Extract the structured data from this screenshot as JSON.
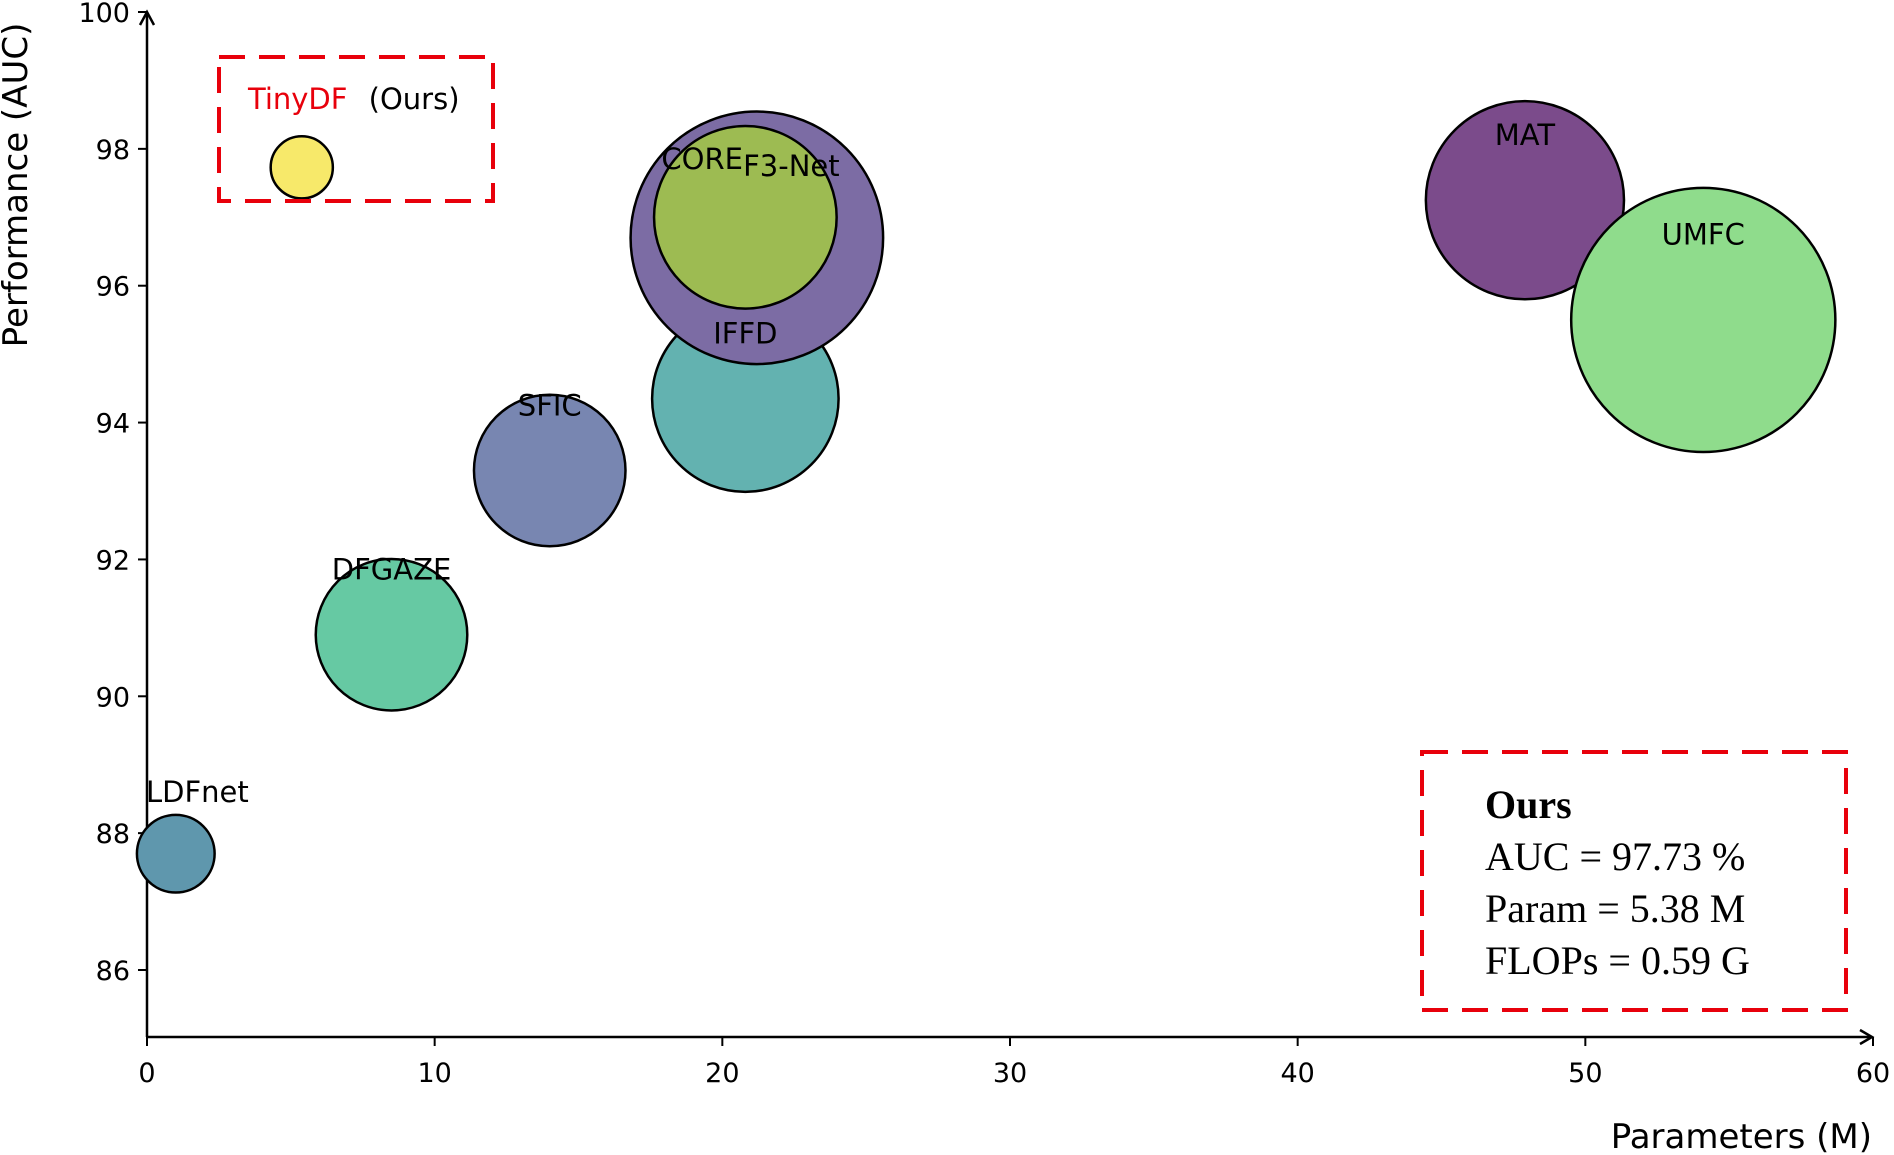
{
  "chart_data": {
    "type": "scatter",
    "xlabel": "Parameters (M)",
    "ylabel": "Performance (AUC)",
    "xlim": [
      0,
      60
    ],
    "ylim": [
      85,
      100
    ],
    "x_ticks": [
      0,
      10,
      20,
      30,
      40,
      50,
      60
    ],
    "y_ticks": [
      86,
      88,
      90,
      92,
      94,
      96,
      98,
      100
    ],
    "grid": false,
    "points": [
      {
        "label": "LDFnet",
        "x": 1.0,
        "y": 87.7,
        "size": 1.0,
        "color": "#5f97ad",
        "label_dx": 0.75,
        "label_dy": 0.9
      },
      {
        "label": "DFGAZE",
        "x": 8.5,
        "y": 90.9,
        "size": 1.95,
        "color": "#66c9a3",
        "label_dx": 0.0,
        "label_dy": 0.95
      },
      {
        "label": "SFIC",
        "x": 14.0,
        "y": 93.3,
        "size": 1.95,
        "color": "#7886b1",
        "label_dx": 0.0,
        "label_dy": 0.95
      },
      {
        "label": "IFFD",
        "x": 20.8,
        "y": 94.35,
        "size": 2.4,
        "color": "#63b2b0",
        "label_dx": 0.0,
        "label_dy": 0.95
      },
      {
        "label": "F3-Net",
        "x": 21.2,
        "y": 96.7,
        "size": 3.25,
        "color": "#7c6ca4",
        "label_dx": 1.2,
        "label_dy": 1.05
      },
      {
        "label": "CORE",
        "x": 20.8,
        "y": 97.0,
        "size": 2.35,
        "color": "#9dbb52",
        "label_dx": -1.5,
        "label_dy": 0.85
      },
      {
        "label": "MAT",
        "x": 47.9,
        "y": 97.25,
        "size": 2.55,
        "color": "#7b4b8b",
        "label_dx": 0.0,
        "label_dy": 0.95
      },
      {
        "label": "UMFC",
        "x": 54.1,
        "y": 95.5,
        "size": 3.4,
        "color": "#8fdc8c",
        "label_dx": 0.0,
        "label_dy": 1.25
      },
      {
        "label": "TinyDF",
        "x": 5.38,
        "y": 97.73,
        "size": 0.8,
        "color": "#f7e96a",
        "label_dx": 0,
        "label_dy": 0
      }
    ],
    "highlight": {
      "name": "TinyDF",
      "suffix": "(Ours)",
      "name_color": "#e8000b",
      "box_color": "#e8000b"
    },
    "stats_box": {
      "title": "Ours",
      "lines": [
        "AUC = 97.73 %",
        "Param = 5.38 M",
        "FLOPs = 0.59 G"
      ]
    }
  }
}
